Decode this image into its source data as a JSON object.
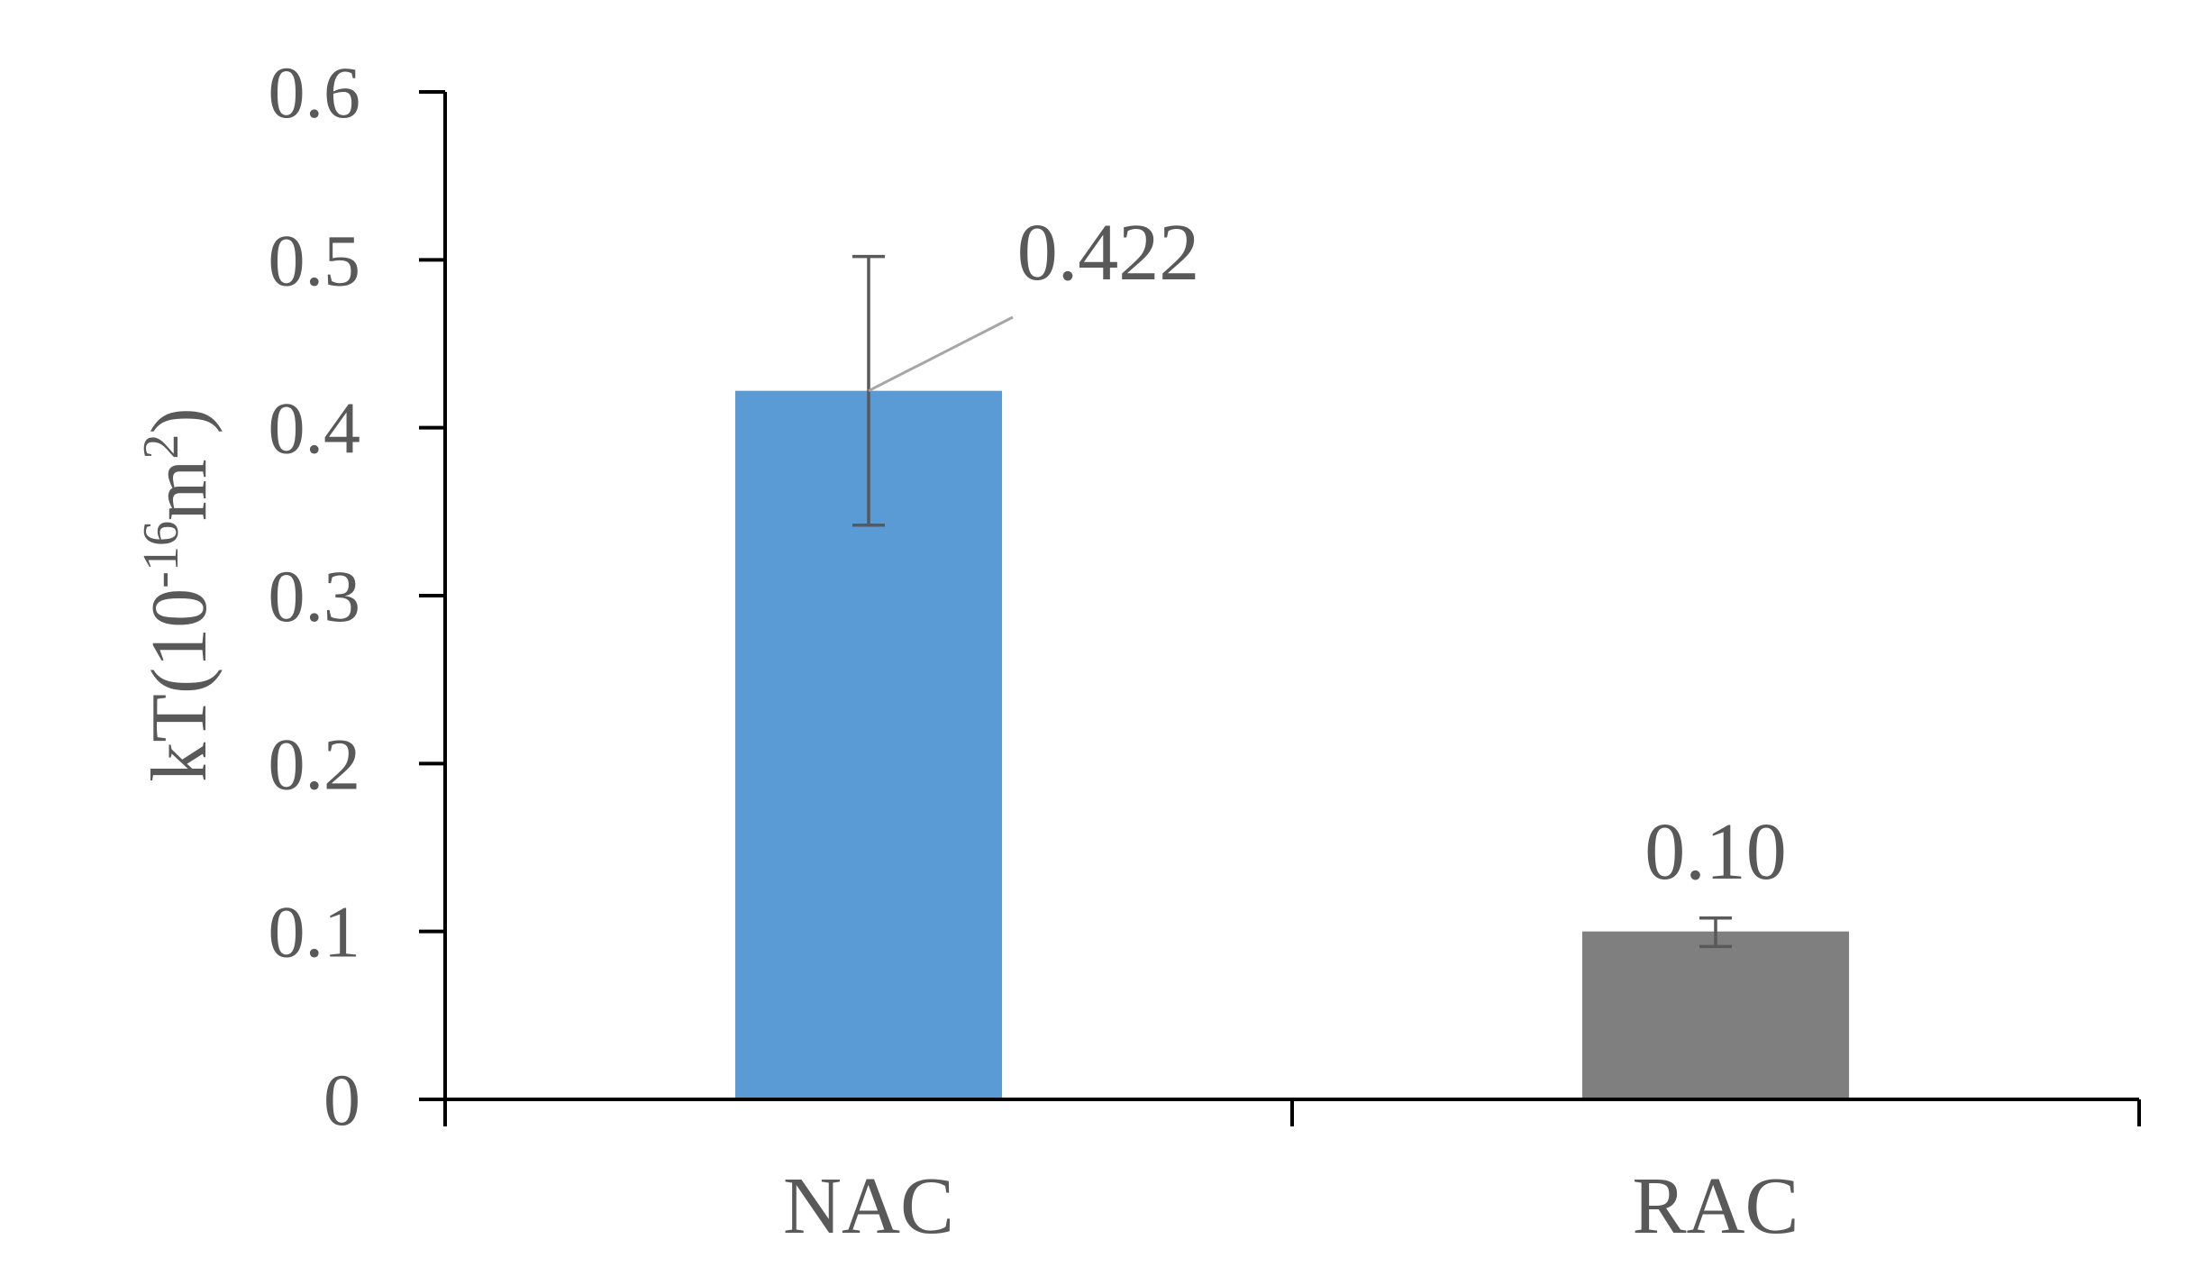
{
  "chart_data": {
    "type": "bar",
    "categories": [
      "NAC",
      "RAC"
    ],
    "values": [
      0.422,
      0.1
    ],
    "error_bars": [
      {
        "low": 0.342,
        "high": 0.502
      },
      {
        "low": 0.091,
        "high": 0.108
      }
    ],
    "data_labels": [
      "0.422",
      "0.10"
    ],
    "bar_colors": [
      "#5B9BD5",
      "#7F7F7F"
    ],
    "ylabel": {
      "main": "kT(10",
      "exp1": "-16",
      "mid": "m",
      "exp2": "2",
      "end": ")"
    },
    "ylim": [
      0,
      0.6
    ],
    "yticks": [
      0,
      0.1,
      0.2,
      0.3,
      0.4,
      0.5,
      0.6
    ],
    "ytick_labels": [
      "0",
      "0.1",
      "0.2",
      "0.3",
      "0.4",
      "0.5",
      "0.6"
    ],
    "grid": false,
    "legend": "none"
  }
}
